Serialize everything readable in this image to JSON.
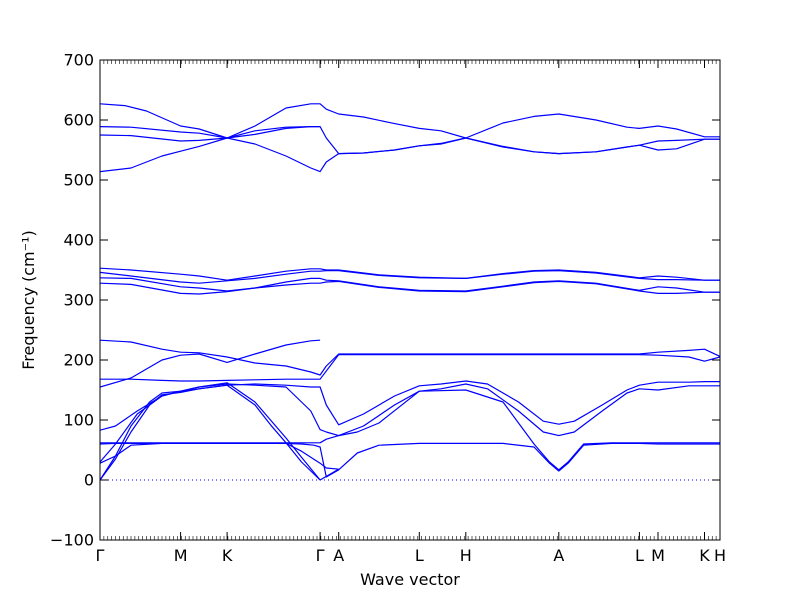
{
  "chart_data": {
    "type": "line",
    "title": "",
    "xlabel": "Wave vector",
    "ylabel": "Frequency (cm⁻¹)",
    "ylim": [
      -100,
      700
    ],
    "yticks": [
      -100,
      0,
      100,
      200,
      300,
      400,
      500,
      600,
      700
    ],
    "xlim": [
      0,
      20
    ],
    "high_symmetry_points": [
      {
        "label": "Γ",
        "x": 0
      },
      {
        "label": "M",
        "x": 2.6
      },
      {
        "label": "K",
        "x": 4.1
      },
      {
        "label": "Γ",
        "x": 7.1
      },
      {
        "label": "A",
        "x": 7.7
      },
      {
        "label": "L",
        "x": 10.3
      },
      {
        "label": "H",
        "x": 11.8
      },
      {
        "label": "A",
        "x": 14.8
      },
      {
        "label": "L",
        "x": 17.4
      },
      {
        "label": "M",
        "x": 18.0
      },
      {
        "label": "K",
        "x": 19.5
      },
      {
        "label": "H",
        "x": 20.0
      }
    ],
    "zero_line": {
      "y": 0,
      "style": "dotted"
    },
    "line_color": "#0000ff",
    "series": [
      {
        "x": [
          0,
          0.8,
          1.5,
          2.6,
          3.2,
          4.1,
          5.0,
          6.0,
          6.8,
          7.1,
          7.3,
          7.7,
          8.5,
          9.5,
          10.3,
          11.0,
          11.8,
          13.0,
          14.0,
          14.8,
          16.0,
          17.0,
          17.4,
          18.0,
          18.6,
          19.5,
          20.0
        ],
        "y": [
          627,
          624,
          615,
          590,
          585,
          570,
          590,
          620,
          627,
          627,
          618,
          610,
          605,
          594,
          586,
          582,
          570,
          595,
          606,
          610,
          600,
          588,
          586,
          590,
          585,
          572,
          572
        ]
      },
      {
        "x": [
          0,
          1.0,
          2.6,
          3.2,
          4.1,
          5.0,
          6.0,
          6.8,
          7.1,
          7.3,
          7.7,
          8.5,
          9.5,
          10.3,
          11.0,
          11.8,
          13.0,
          14.0,
          14.8,
          16.0,
          17.0,
          17.4,
          18.0,
          18.6,
          19.5,
          20.0
        ],
        "y": [
          589,
          588,
          580,
          578,
          570,
          576,
          586,
          589,
          589,
          570,
          544,
          545,
          550,
          557,
          560,
          570,
          555,
          547,
          544,
          547,
          555,
          558,
          565,
          566,
          568,
          568
        ]
      },
      {
        "x": [
          0,
          1.0,
          2.6,
          3.2,
          4.1,
          5.0,
          6.0,
          6.8,
          7.1,
          7.3,
          7.7,
          8.5,
          9.5,
          10.3,
          11.0,
          11.8,
          13.0,
          14.0,
          14.8,
          16.0,
          17.0,
          17.4,
          18.0,
          18.6,
          19.5,
          20.0
        ],
        "y": [
          575,
          574,
          565,
          566,
          570,
          560,
          540,
          520,
          514,
          530,
          544,
          545,
          550,
          557,
          561,
          570,
          556,
          547,
          544,
          547,
          555,
          558,
          550,
          552,
          568,
          568
        ]
      },
      {
        "x": [
          0,
          1.0,
          2.0,
          2.6,
          3.2,
          4.1,
          5.0,
          6.0,
          6.8,
          7.1
        ],
        "y": [
          514,
          520,
          540,
          548,
          556,
          570,
          582,
          588,
          589,
          589
        ]
      },
      {
        "x": [
          0,
          1.0,
          2.6,
          3.2,
          4.1,
          5.0,
          6.0,
          6.8,
          7.1,
          7.3,
          7.7,
          9.0,
          10.3,
          11.8,
          13.0,
          14.0,
          14.8,
          16.0,
          17.4,
          18.0,
          18.6,
          19.5,
          20.0
        ],
        "y": [
          353,
          350,
          343,
          340,
          333,
          340,
          348,
          352,
          352,
          350,
          350,
          342,
          338,
          336,
          344,
          349,
          350,
          346,
          337,
          340,
          338,
          333,
          333
        ]
      },
      {
        "x": [
          0,
          1.0,
          2.6,
          3.2,
          4.1,
          5.0,
          6.0,
          6.8,
          7.1,
          7.3,
          7.7,
          9.0,
          10.3,
          11.8,
          13.0,
          14.0,
          14.8,
          16.0,
          17.4,
          18.0,
          18.6,
          19.5,
          20.0
        ],
        "y": [
          346,
          340,
          330,
          328,
          332,
          336,
          343,
          348,
          348,
          349,
          349,
          341,
          337,
          336,
          343,
          348,
          349,
          345,
          336,
          334,
          334,
          333,
          333
        ]
      },
      {
        "x": [
          0,
          1.0,
          2.6,
          3.2,
          4.1,
          5.0,
          6.0,
          6.8,
          7.1,
          7.3,
          7.7,
          9.0,
          10.3,
          11.8,
          13.0,
          14.0,
          14.8,
          16.0,
          17.4,
          18.0,
          18.6,
          19.5,
          20.0
        ],
        "y": [
          337,
          336,
          322,
          320,
          315,
          320,
          330,
          336,
          336,
          333,
          332,
          322,
          316,
          315,
          323,
          330,
          332,
          328,
          316,
          322,
          320,
          313,
          313
        ]
      },
      {
        "x": [
          0,
          1.0,
          2.6,
          3.2,
          4.1,
          5.0,
          6.0,
          6.8,
          7.1,
          7.3,
          7.7,
          9.0,
          10.3,
          11.8,
          13.0,
          14.0,
          14.8,
          16.0,
          17.4,
          18.0,
          18.6,
          19.5,
          20.0
        ],
        "y": [
          328,
          326,
          311,
          310,
          314,
          320,
          325,
          328,
          328,
          330,
          331,
          321,
          315,
          314,
          322,
          329,
          331,
          327,
          315,
          311,
          311,
          313,
          313
        ]
      },
      {
        "x": [
          0,
          1.0,
          2.0,
          2.6,
          3.2,
          4.1,
          5.0,
          6.0,
          6.8,
          7.1,
          7.3,
          7.7,
          9.0,
          10.3,
          11.8,
          13.0,
          14.8,
          16.0,
          17.4,
          18.0,
          19.0,
          19.5,
          20.0
        ],
        "y": [
          233,
          230,
          218,
          213,
          212,
          205,
          195,
          190,
          180,
          175,
          190,
          210,
          210,
          210,
          210,
          210,
          210,
          210,
          210,
          213,
          216,
          218,
          206
        ]
      },
      {
        "x": [
          0,
          1.0,
          2.0,
          2.6,
          3.2,
          4.1,
          5.0,
          6.0,
          6.8,
          7.1
        ],
        "y": [
          155,
          170,
          200,
          208,
          210,
          196,
          210,
          225,
          232,
          233
        ]
      },
      {
        "x": [
          0,
          1.0,
          2.0,
          2.6,
          3.2,
          4.1,
          5.0,
          6.0,
          6.8,
          7.1,
          7.7,
          9.0,
          10.3,
          11.8,
          13.0,
          14.8,
          16.0,
          17.4,
          18.0,
          19.0,
          19.5,
          20.0
        ],
        "y": [
          168,
          168,
          166,
          165,
          165,
          166,
          167,
          168,
          168,
          168,
          209,
          209,
          209,
          209,
          209,
          209,
          209,
          209,
          208,
          205,
          198,
          205
        ]
      },
      {
        "x": [
          0,
          0.5,
          1.2,
          2.0,
          2.6,
          3.2,
          4.1,
          5.0,
          6.0,
          6.8,
          7.1,
          7.3,
          7.7,
          8.5,
          9.5,
          10.3,
          11.0,
          11.8,
          12.5,
          13.5,
          14.3,
          14.8,
          15.3,
          16.2,
          17.0,
          17.4,
          18.0,
          19.0,
          19.5,
          20.0
        ],
        "y": [
          83,
          90,
          115,
          140,
          148,
          152,
          158,
          160,
          158,
          155,
          155,
          125,
          92,
          110,
          140,
          157,
          160,
          165,
          160,
          130,
          98,
          93,
          98,
          125,
          150,
          158,
          163,
          163,
          164,
          164
        ]
      },
      {
        "x": [
          0,
          0.5,
          1.2,
          2.0,
          2.6,
          3.2,
          4.1,
          5.0,
          6.0,
          6.8,
          7.1,
          7.3,
          7.7,
          8.5,
          9.5,
          10.3,
          11.0,
          11.8,
          12.5,
          13.5,
          14.3,
          14.8,
          15.3,
          16.2,
          17.0,
          17.4,
          18.0,
          19.0,
          19.5,
          20.0
        ],
        "y": [
          30,
          60,
          110,
          140,
          148,
          155,
          160,
          158,
          155,
          115,
          84,
          80,
          74,
          90,
          125,
          148,
          152,
          160,
          152,
          115,
          80,
          74,
          80,
          115,
          145,
          152,
          150,
          157,
          157,
          157
        ]
      },
      {
        "x": [
          0,
          0.5,
          1.0,
          1.6,
          2.0,
          2.6,
          3.2,
          4.1,
          5.0,
          5.5,
          6.0,
          6.5,
          7.1
        ],
        "y": [
          0,
          40,
          90,
          130,
          145,
          148,
          155,
          162,
          130,
          100,
          70,
          38,
          0
        ]
      },
      {
        "x": [
          0,
          0.5,
          1.0,
          1.6,
          2.0,
          2.6,
          3.2,
          4.1,
          5.0,
          5.5,
          6.0,
          6.5,
          7.1
        ],
        "y": [
          0,
          35,
          80,
          125,
          142,
          146,
          152,
          158,
          125,
          92,
          62,
          30,
          0
        ]
      },
      {
        "x": [
          0,
          0.5,
          1.0,
          2.0,
          2.6,
          3.2,
          4.1,
          5.0,
          6.0,
          6.5,
          6.9,
          7.1,
          7.3,
          7.7,
          8.3,
          9.0,
          10.3,
          11.8,
          13.0,
          14.0,
          14.5,
          14.8,
          15.1,
          15.6,
          16.5,
          17.4,
          18.0,
          19.5,
          20.0
        ],
        "y": [
          62,
          62,
          62,
          62,
          62,
          62,
          62,
          62,
          62,
          62,
          62,
          62,
          68,
          74,
          80,
          95,
          148,
          150,
          130,
          60,
          30,
          17,
          30,
          60,
          62,
          62,
          62,
          62,
          62
        ]
      },
      {
        "x": [
          0,
          0.5,
          1.0,
          2.0,
          2.6,
          3.2,
          4.1,
          5.0,
          6.0,
          6.5,
          6.9,
          7.1,
          7.3,
          7.7,
          8.3,
          9.0,
          10.3,
          11.8,
          13.0,
          14.0,
          14.5,
          14.8,
          15.1,
          15.6,
          16.5,
          17.4,
          18.0,
          19.5,
          20.0
        ],
        "y": [
          60,
          61,
          61,
          61,
          61,
          61,
          61,
          61,
          61,
          60,
          58,
          55,
          5,
          17,
          45,
          58,
          61,
          61,
          61,
          55,
          28,
          15,
          28,
          58,
          61,
          61,
          60,
          60,
          60
        ]
      },
      {
        "x": [
          0,
          0.5,
          1.0,
          2.0,
          2.6,
          3.2,
          4.1,
          5.0,
          6.0,
          6.5,
          7.1,
          7.3,
          7.7
        ],
        "y": [
          28,
          40,
          58,
          61,
          61,
          61,
          61,
          61,
          61,
          48,
          28,
          20,
          18
        ]
      },
      {
        "x": [
          7.1,
          7.7
        ],
        "y": [
          0,
          18
        ]
      }
    ]
  }
}
